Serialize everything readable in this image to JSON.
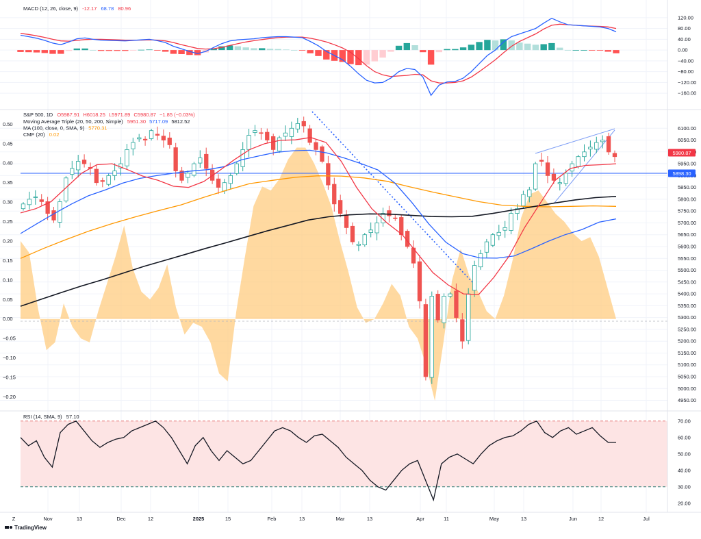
{
  "panes": {
    "macd": {
      "legend": {
        "name": "MACD (12, 26, close, 9)",
        "v1": "-12.17",
        "v2": "68.78",
        "v3": "80.96"
      },
      "colors": {
        "macd": "#2962ff",
        "signal": "#f23645",
        "hist_pos_strong": "#26a69a",
        "hist_pos_weak": "#b2dfdb",
        "hist_neg_strong": "#ff5252",
        "hist_neg_weak": "#ffcdd2"
      }
    },
    "price": {
      "legend": {
        "line1": {
          "symbol": "S&P 500, 1D",
          "o": "O5987.91",
          "h": "H6018.25",
          "l": "L5971.89",
          "c": "C5980.87",
          "chg": "−1.85 (−0.03%)"
        },
        "line2": {
          "name": "Moving Average Triple (20, 50, 200, Simple)",
          "v1": "5951.30",
          "v2": "5717.09",
          "v3": "5812.52"
        },
        "line3": {
          "name": "MA (100, close, 0, SMA, 9)",
          "v1": "5770.31"
        },
        "line4": {
          "name": "CMF (20)",
          "v1": "0.02"
        }
      },
      "price_tag": "5980.87",
      "hline_tag": "5898.30",
      "colors": {
        "up": "#26a69a",
        "down": "#ef5350",
        "ma20": "#f23645",
        "ma50": "#2962ff",
        "ma200": "#131722",
        "ma100": "#ff9800",
        "cmf": "#ffcc80",
        "hline": "#2962ff"
      }
    },
    "rsi": {
      "legend": {
        "name": "RSI (14, SMA, 9)",
        "v1": "57.10"
      },
      "colors": {
        "line": "#131722",
        "band": "#fde4e4",
        "upper": "#e57373",
        "lower": "#2e7d74"
      }
    }
  },
  "time_axis": {
    "labels": [
      "Z",
      "Nov",
      "13",
      "Dec",
      "12",
      "2025",
      "15",
      "Feb",
      "13",
      "Mar",
      "13",
      "Apr",
      "11",
      "May",
      "13",
      "Jun",
      "12",
      "Jul"
    ]
  },
  "branding": {
    "name": "TradingView"
  },
  "chart_data": [
    {
      "type": "line",
      "title": "MACD (12, 26, close, 9)",
      "yticks": [
        "120.00",
        "80.00",
        "40.00",
        "0.00",
        "−40.00",
        "−80.00",
        "−120.00",
        "−160.00"
      ],
      "ylim": [
        -175,
        135
      ],
      "series": [
        {
          "name": "MACD",
          "values": [
            55,
            50,
            44,
            36,
            26,
            20,
            30,
            42,
            45,
            40,
            37,
            36,
            35,
            34,
            36,
            38,
            40,
            35,
            28,
            14,
            5,
            -5,
            -13,
            -5,
            10,
            24,
            34,
            38,
            40,
            42,
            46,
            48,
            50,
            50,
            48,
            46,
            32,
            16,
            -5,
            -20,
            -36,
            -60,
            -88,
            -112,
            -122,
            -120,
            -104,
            -80,
            -68,
            -72,
            -100,
            -168,
            -130,
            -118,
            -116,
            -104,
            -80,
            -50,
            -20,
            0,
            30,
            50,
            60,
            70,
            80,
            100,
            118,
            105,
            94,
            92,
            90,
            88,
            86,
            80,
            68
          ]
        },
        {
          "name": "Signal",
          "values": [
            62,
            58,
            53,
            47,
            40,
            34,
            33,
            36,
            39,
            40,
            40,
            39,
            38,
            37,
            37,
            37,
            38,
            37,
            34,
            28,
            20,
            13,
            6,
            4,
            5,
            10,
            17,
            24,
            30,
            35,
            39,
            43,
            46,
            48,
            48,
            48,
            44,
            38,
            30,
            20,
            8,
            -8,
            -32,
            -58,
            -80,
            -92,
            -98,
            -96,
            -94,
            -90,
            -92,
            -114,
            -122,
            -122,
            -120,
            -114,
            -100,
            -80,
            -58,
            -36,
            -10,
            14,
            32,
            46,
            60,
            78,
            92,
            96,
            94,
            92,
            90,
            89,
            88,
            86,
            80
          ]
        },
        {
          "name": "Histogram",
          "values": [
            -7,
            -8,
            -9,
            -11,
            -14,
            -14,
            -3,
            6,
            6,
            0,
            -3,
            -3,
            -3,
            -3,
            -1,
            1,
            2,
            -2,
            -6,
            -14,
            -15,
            -18,
            -19,
            -9,
            5,
            14,
            17,
            14,
            10,
            7,
            7,
            5,
            4,
            2,
            0,
            -2,
            -12,
            -22,
            -35,
            -40,
            -44,
            -52,
            -56,
            -54,
            -42,
            -28,
            -6,
            16,
            26,
            18,
            -8,
            -54,
            -8,
            4,
            4,
            10,
            20,
            30,
            38,
            36,
            40,
            36,
            28,
            24,
            20,
            22,
            26,
            9,
            0,
            0,
            0,
            -1,
            -2,
            -6,
            -12
          ]
        }
      ]
    },
    {
      "type": "candlestick",
      "title": "S&P 500, 1D",
      "ylim": [
        4940,
        6150
      ],
      "yticks": [
        6100,
        6050,
        6000,
        5950,
        5900,
        5850,
        5800,
        5750,
        5700,
        5650,
        5600,
        5550,
        5500,
        5450,
        5400,
        5350,
        5300,
        5250,
        5200,
        5150,
        5100,
        5050,
        5000,
        4950
      ],
      "cmf_axis": {
        "ylim": [
          -0.215,
          0.52
        ],
        "ticks": [
          "0.50",
          "0.45",
          "0.40",
          "0.35",
          "0.30",
          "0.25",
          "0.20",
          "0.15",
          "0.10",
          "0.05",
          "0.00",
          "−0.05",
          "−0.10",
          "−0.15",
          "−0.20"
        ]
      },
      "close": [
        5780,
        5800,
        5810,
        5790,
        5740,
        5712,
        5790,
        5890,
        5930,
        5960,
        5950,
        5930,
        5870,
        5875,
        5900,
        5920,
        5950,
        6010,
        6040,
        6060,
        6050,
        6090,
        6070,
        6050,
        6030,
        5920,
        5880,
        5910,
        5950,
        5975,
        5930,
        5880,
        5850,
        5870,
        5900,
        5950,
        6010,
        6070,
        6090,
        6080,
        6050,
        6010,
        6060,
        6080,
        6100,
        6120,
        6110,
        6040,
        6010,
        5960,
        5860,
        5780,
        5740,
        5680,
        5620,
        5610,
        5650,
        5670,
        5700,
        5740,
        5730,
        5720,
        5650,
        5600,
        5530,
        5370,
        5050,
        5390,
        5290,
        5390,
        5400,
        5300,
        5200,
        5400,
        5520,
        5570,
        5620,
        5650,
        5660,
        5680,
        5740,
        5760,
        5820,
        5840,
        5950,
        5960,
        5900,
        5880,
        5870,
        5910,
        5950,
        5980,
        6000,
        6020,
        6040,
        6050,
        6000,
        5980
      ],
      "series": [
        {
          "name": "MA 20",
          "values": [
            5742,
            5760,
            5790,
            5850,
            5910,
            5946,
            5950,
            5925,
            5898,
            5880,
            5855,
            5850,
            5875,
            5920,
            5967,
            6010,
            6035,
            6049,
            6051,
            6061,
            6040,
            5960,
            5850,
            5760,
            5700,
            5650,
            5570,
            5490,
            5438,
            5400,
            5397,
            5470,
            5560,
            5680,
            5780,
            5880,
            5930,
            5943,
            5946,
            5950
          ]
        },
        {
          "name": "MA 50",
          "values": [
            5655,
            5698,
            5740,
            5780,
            5815,
            5840,
            5868,
            5888,
            5900,
            5910,
            5919,
            5925,
            5938,
            5967,
            5983,
            5998,
            6005,
            6007,
            5996,
            5975,
            5951,
            5924,
            5868,
            5786,
            5695,
            5618,
            5570,
            5552,
            5551,
            5560,
            5590,
            5622,
            5650,
            5672,
            5703,
            5717
          ]
        },
        {
          "name": "MA 200",
          "values": [
            5348,
            5377,
            5406,
            5434,
            5460,
            5488,
            5516,
            5541,
            5566,
            5592,
            5616,
            5641,
            5666,
            5689,
            5712,
            5726,
            5734,
            5738,
            5737,
            5732,
            5727,
            5726,
            5728,
            5740,
            5755,
            5769,
            5784,
            5797,
            5807,
            5812
          ]
        },
        {
          "name": "MA 100",
          "values": [
            5550,
            5592,
            5630,
            5666,
            5697,
            5725,
            5751,
            5776,
            5808,
            5838,
            5866,
            5880,
            5893,
            5899,
            5898,
            5890,
            5876,
            5852,
            5830,
            5810,
            5790,
            5775,
            5770,
            5768,
            5770,
            5772,
            5770
          ]
        },
        {
          "name": "CMF (20)",
          "values": [
            0.2,
            0.17,
            0.03,
            -0.08,
            -0.06,
            0.04,
            -0.02,
            -0.05,
            -0.06,
            0.02,
            0.09,
            0.16,
            0.24,
            0.13,
            0.07,
            0.05,
            0.08,
            0.14,
            0.03,
            -0.04,
            -0.01,
            -0.02,
            -0.06,
            -0.14,
            -0.16,
            0.02,
            0.16,
            0.29,
            0.34,
            0.33,
            0.36,
            0.41,
            0.44,
            0.44,
            0.4,
            0.35,
            0.29,
            0.2,
            0.12,
            0.03,
            -0.01,
            0.0,
            0.04,
            0.09,
            0.06,
            -0.02,
            -0.05,
            -0.12,
            -0.21,
            -0.06,
            0.1,
            0.18,
            0.11,
            0.07,
            0.02,
            0.0,
            0.06,
            0.15,
            0.26,
            0.32,
            0.33,
            0.3,
            0.27,
            0.25,
            0.22,
            0.2,
            0.21,
            0.16,
            0.08,
            0.0
          ]
        }
      ]
    },
    {
      "type": "line",
      "title": "RSI (14, SMA, 9)",
      "yticks": [
        "70.00",
        "60.00",
        "50.00",
        "40.00",
        "30.00",
        "20.00"
      ],
      "ylim": [
        17,
        72
      ],
      "bands": [
        30,
        70
      ],
      "series": [
        {
          "name": "RSI",
          "values": [
            60,
            55,
            58,
            48,
            42,
            63,
            68,
            70,
            64,
            58,
            54,
            57,
            59,
            60,
            64,
            66,
            68,
            70,
            66,
            60,
            52,
            44,
            55,
            60,
            52,
            46,
            52,
            48,
            44,
            46,
            52,
            58,
            64,
            66,
            64,
            60,
            57,
            61,
            62,
            58,
            54,
            48,
            44,
            40,
            34,
            30,
            28,
            34,
            40,
            44,
            46,
            34,
            22,
            44,
            48,
            50,
            47,
            44,
            50,
            55,
            58,
            60,
            61,
            64,
            68,
            70,
            63,
            60,
            64,
            66,
            62,
            64,
            66,
            61,
            57,
            57
          ]
        }
      ]
    }
  ]
}
